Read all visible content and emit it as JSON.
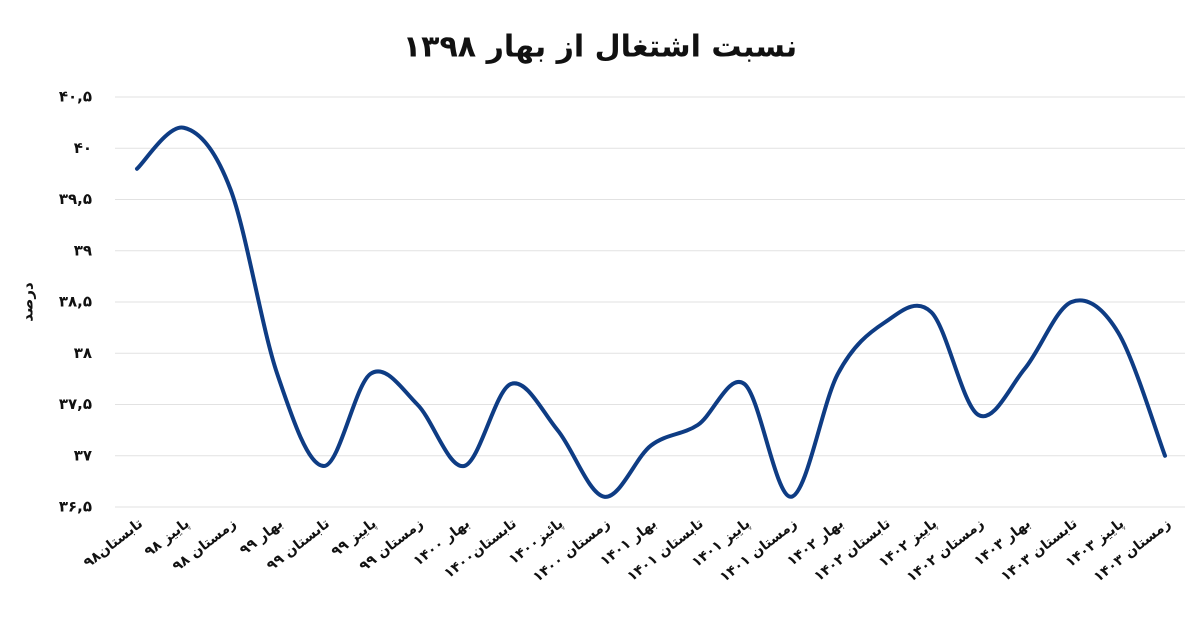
{
  "chart_data": {
    "type": "line",
    "title": "نسبت اشتغال از بهار ۱۳۹۸",
    "y_label": "درصد",
    "categories": [
      "تابستان۹۸",
      "پاییز ۹۸",
      "زمستان ۹۸",
      "بهار ۹۹",
      "تابستان ۹۹",
      "پاییز ۹۹",
      "زمستان ۹۹",
      "بهار ۱۴۰۰",
      "تابستان۱۴۰۰",
      "پائیز۱۴۰۰",
      "زمستان ۱۴۰۰",
      "بهار ۱۴۰۱",
      "تابستان ۱۴۰۱",
      "پاییز ۱۴۰۱",
      "زمستان ۱۴۰۱",
      "بهار ۱۴۰۲",
      "تابستان ۱۴۰۲",
      "پاییز ۱۴۰۲",
      "زمستان ۱۴۰۲",
      "بهار ۱۴۰۳",
      "تابستان ۱۴۰۳",
      "پاییز ۱۴۰۳",
      "زمستان ۱۴۰۳"
    ],
    "values": [
      39.8,
      40.2,
      39.6,
      37.8,
      36.9,
      37.8,
      37.5,
      36.9,
      37.7,
      37.25,
      36.6,
      37.1,
      37.3,
      37.7,
      36.6,
      37.8,
      38.3,
      38.4,
      37.4,
      37.85,
      38.5,
      38.2,
      37.0
    ],
    "color": "#0e3c84",
    "ylim": [
      36.5,
      40.5
    ],
    "yticks": [
      {
        "value": 36.5,
        "label": "۳۶,۵"
      },
      {
        "value": 37,
        "label": "۳۷"
      },
      {
        "value": 37.5,
        "label": "۳۷,۵"
      },
      {
        "value": 38,
        "label": "۳۸"
      },
      {
        "value": 38.5,
        "label": "۳۸,۵"
      },
      {
        "value": 39,
        "label": "۳۹"
      },
      {
        "value": 39.5,
        "label": "۳۹,۵"
      },
      {
        "value": 40,
        "label": "۴۰"
      },
      {
        "value": 40.5,
        "label": "۴۰,۵"
      }
    ],
    "grid": true
  }
}
